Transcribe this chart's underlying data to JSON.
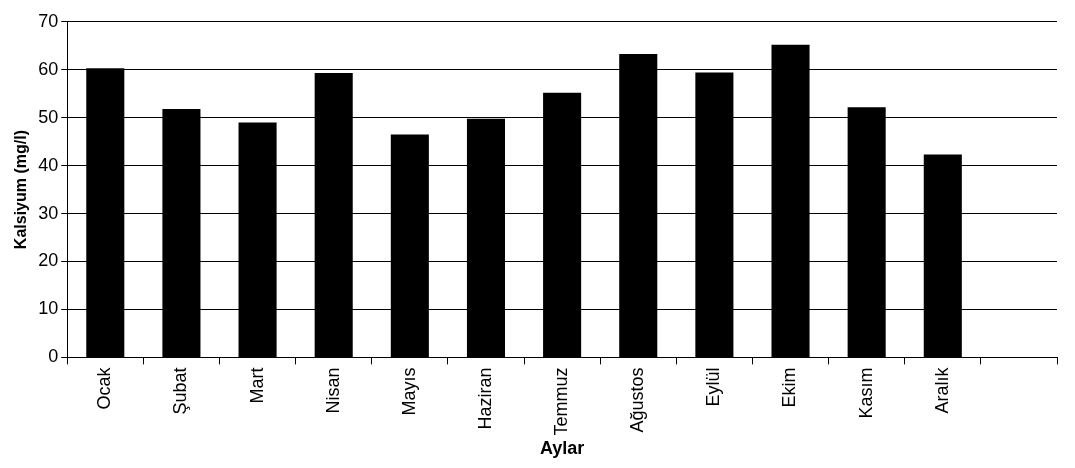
{
  "chart_data": {
    "type": "bar",
    "xlabel": "Aylar",
    "ylabel": "Kalsiyum (mg/l)",
    "categories": [
      "Ocak",
      "Şubat",
      "Mart",
      "Nisan",
      "Mayıs",
      "Haziran",
      "Temmuz",
      "Ağustos",
      "Eylül",
      "Ekim",
      "Kasım",
      "Aralık",
      null
    ],
    "values": [
      60.3,
      51.8,
      49,
      59.3,
      46.5,
      49.8,
      55.2,
      63.3,
      59.4,
      65.2,
      52.2,
      42.3,
      null
    ],
    "color": "#000000",
    "ylim": [
      0,
      70
    ],
    "yticks": [
      0,
      10,
      20,
      30,
      40,
      50,
      60,
      70
    ],
    "grid": "y",
    "legend": false
  }
}
